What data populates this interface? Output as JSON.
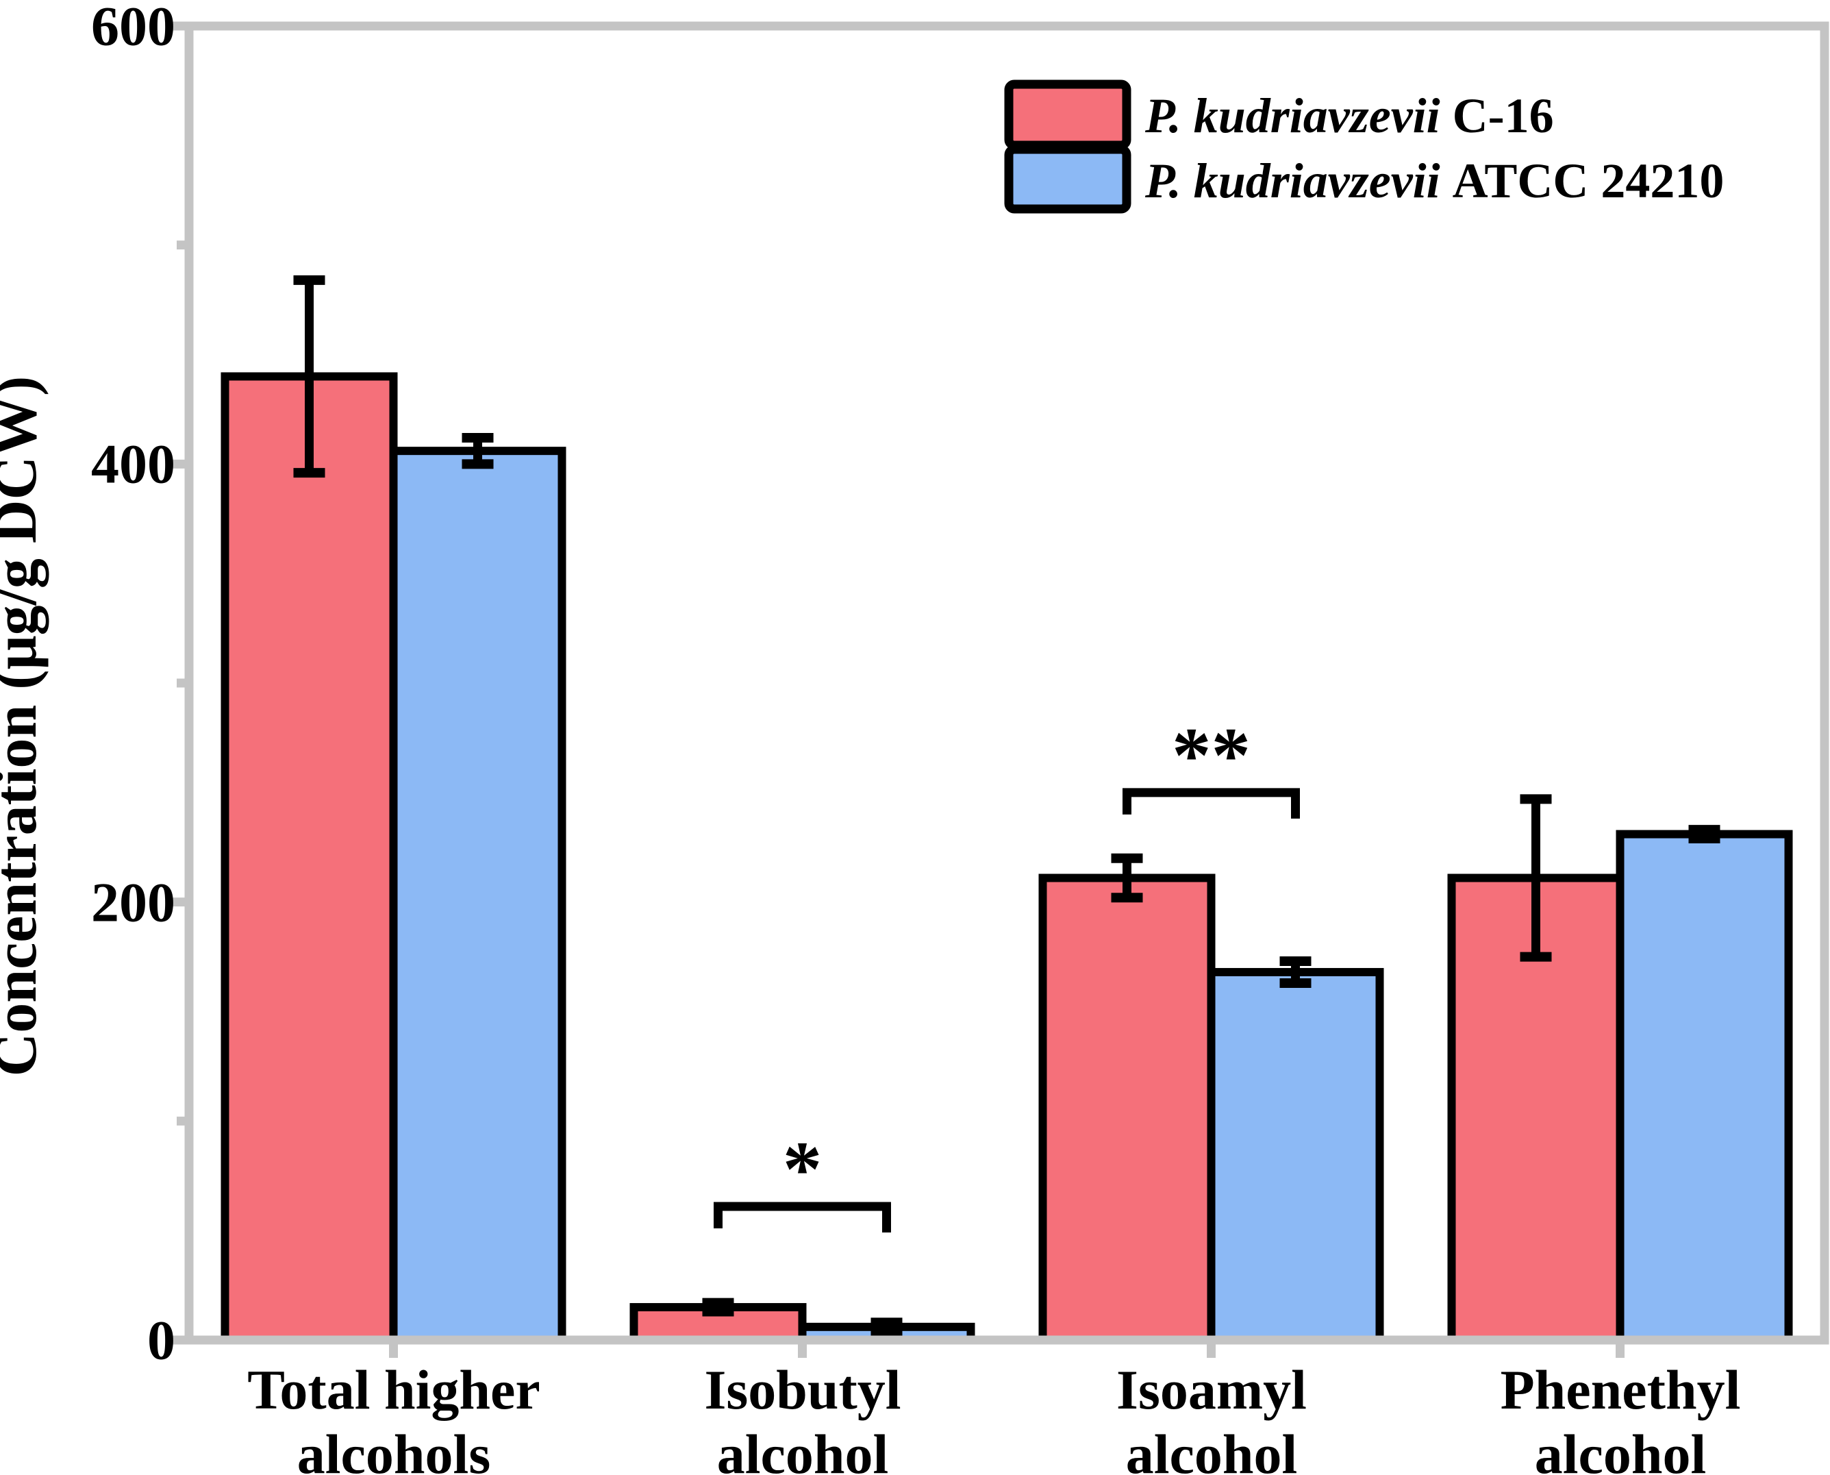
{
  "chart_data": {
    "type": "bar",
    "title": "",
    "ylabel": "Concentration (μg/g DCW)",
    "xlabel": "",
    "ylim": [
      0,
      600
    ],
    "ytick_major": [
      0,
      200,
      400,
      600
    ],
    "ytick_minor": [
      100,
      300,
      500
    ],
    "ytick_labels": [
      "600",
      "400",
      "200",
      "0"
    ],
    "grid": false,
    "legend_position": "top-right",
    "categories": [
      {
        "line1": "Total higher",
        "line2": "alcohols"
      },
      {
        "line1": "Isobutyl",
        "line2": "alcohol"
      },
      {
        "line1": "Isoamyl",
        "line2": "alcohol"
      },
      {
        "line1": "Phenethyl",
        "line2": "alcohol"
      }
    ],
    "series": [
      {
        "name": "P. kudriavzevii C-16",
        "name_italic": "P. kudriavzevii",
        "name_suffix": "C-16",
        "color": "#F5707A",
        "values": [
          440,
          15,
          211,
          211
        ],
        "errors": [
          44,
          2,
          9,
          36
        ]
      },
      {
        "name": "P. kudriavzevii ATCC 24210",
        "name_italic": "P. kudriavzevii",
        "name_suffix": "ATCC 24210",
        "color": "#8CB9F5",
        "values": [
          406,
          6,
          168,
          231
        ],
        "errors": [
          6,
          2,
          5,
          2
        ]
      }
    ],
    "significance": [
      {
        "category_index": 1,
        "label": "*",
        "bracket_value": 61
      },
      {
        "category_index": 2,
        "label": "**",
        "bracket_value": 250
      }
    ],
    "colors": {
      "frame": "#C4C4C4",
      "bar_outline": "#000000",
      "error_bar": "#000000",
      "significance": "#8E8E8E",
      "text": "#000000",
      "background": "#FFFFFF"
    }
  }
}
